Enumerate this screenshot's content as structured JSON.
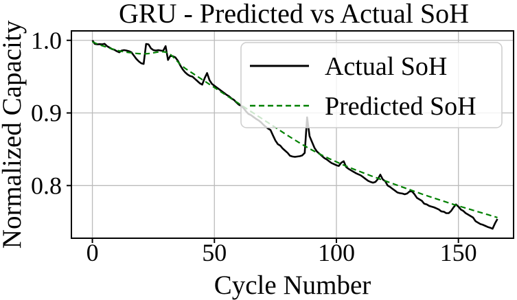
{
  "chart_data": {
    "type": "line",
    "title": "GRU - Predicted vs Actual SoH",
    "xlabel": "Cycle Number",
    "ylabel": "Normalized Capacity",
    "xlim": [
      -8.6,
      172.6
    ],
    "ylim": [
      0.7275,
      1.013
    ],
    "xticks": [
      0,
      50,
      100,
      150
    ],
    "yticks": [
      0.8,
      0.9,
      1.0
    ],
    "xtick_labels": [
      "0",
      "50",
      "100",
      "150"
    ],
    "ytick_labels": [
      "0.8",
      "0.9",
      "1.0"
    ],
    "grid": true,
    "grid_color": "#bbbbbb",
    "spine_color": "#000000",
    "background_color": "#ffffff",
    "legend": {
      "position": "upper right",
      "background": "rgba(255,255,255,0.8)",
      "border_color": "#cccccc"
    },
    "x": [
      0,
      1,
      2,
      3,
      4,
      5,
      6,
      7,
      8,
      9,
      10,
      11,
      12,
      13,
      14,
      15,
      16,
      17,
      18,
      19,
      20,
      21,
      22,
      23,
      24,
      25,
      26,
      27,
      28,
      29,
      30,
      31,
      32,
      33,
      34,
      35,
      36,
      37,
      38,
      39,
      40,
      41,
      42,
      43,
      44,
      45,
      46,
      47,
      48,
      49,
      50,
      51,
      52,
      53,
      54,
      55,
      56,
      57,
      58,
      59,
      60,
      61,
      62,
      63,
      64,
      65,
      66,
      67,
      68,
      69,
      70,
      71,
      72,
      73,
      74,
      75,
      76,
      77,
      78,
      79,
      80,
      81,
      82,
      83,
      84,
      85,
      86,
      87,
      88,
      89,
      90,
      91,
      92,
      93,
      94,
      95,
      96,
      97,
      98,
      99,
      100,
      101,
      102,
      103,
      104,
      105,
      106,
      107,
      108,
      109,
      110,
      111,
      112,
      113,
      114,
      115,
      116,
      117,
      118,
      119,
      120,
      121,
      122,
      123,
      124,
      125,
      126,
      127,
      128,
      129,
      130,
      131,
      132,
      133,
      134,
      135,
      136,
      137,
      138,
      139,
      140,
      141,
      142,
      143,
      144,
      145,
      146,
      147,
      148,
      149,
      150,
      151,
      152,
      153,
      154,
      155,
      156,
      157,
      158,
      159,
      160,
      161,
      162,
      163,
      164,
      165,
      166
    ],
    "series": [
      {
        "name": "Actual SoH",
        "color": "#000000",
        "style": "solid",
        "line_width": 2.6,
        "values": [
          1.0,
          0.995,
          0.9945,
          0.9948,
          0.9945,
          0.9952,
          0.992,
          0.99,
          0.988,
          0.987,
          0.985,
          0.9835,
          0.986,
          0.9865,
          0.986,
          0.985,
          0.9835,
          0.979,
          0.9745,
          0.971,
          0.9685,
          0.9675,
          0.995,
          0.9945,
          0.989,
          0.9865,
          0.986,
          0.9865,
          0.986,
          0.9855,
          0.992,
          0.973,
          0.979,
          0.978,
          0.9765,
          0.972,
          0.9655,
          0.96,
          0.956,
          0.953,
          0.951,
          0.95,
          0.947,
          0.944,
          0.941,
          0.939,
          0.948,
          0.955,
          0.945,
          0.94,
          0.9375,
          0.935,
          0.9325,
          0.93,
          0.9275,
          0.925,
          0.923,
          0.92,
          0.918,
          0.9145,
          0.9115,
          0.91,
          0.9065,
          0.902,
          0.8985,
          0.897,
          0.8945,
          0.892,
          0.89,
          0.8875,
          0.884,
          0.881,
          0.8785,
          0.8765,
          0.869,
          0.862,
          0.857,
          0.855,
          0.851,
          0.848,
          0.845,
          0.841,
          0.84,
          0.8395,
          0.84,
          0.8405,
          0.8415,
          0.845,
          0.894,
          0.868,
          0.86,
          0.852,
          0.847,
          0.844,
          0.841,
          0.838,
          0.836,
          0.8335,
          0.831,
          0.8295,
          0.828,
          0.827,
          0.8315,
          0.8335,
          0.8255,
          0.823,
          0.821,
          0.819,
          0.817,
          0.8155,
          0.814,
          0.8115,
          0.809,
          0.8065,
          0.805,
          0.804,
          0.805,
          0.809,
          0.815,
          0.8085,
          0.806,
          0.8,
          0.798,
          0.7955,
          0.793,
          0.7905,
          0.7895,
          0.789,
          0.788,
          0.789,
          0.792,
          0.792,
          0.788,
          0.783,
          0.781,
          0.779,
          0.775,
          0.774,
          0.772,
          0.771,
          0.77,
          0.7685,
          0.767,
          0.7645,
          0.764,
          0.762,
          0.762,
          0.765,
          0.77,
          0.774,
          0.771,
          0.767,
          0.765,
          0.762,
          0.76,
          0.758,
          0.756,
          0.751,
          0.749,
          0.747,
          0.746,
          0.7445,
          0.743,
          0.742,
          0.7405,
          0.748,
          0.754
        ]
      },
      {
        "name": "Predicted SoH",
        "color": "#008000",
        "style": "dashed",
        "dash": [
          8,
          5
        ],
        "line_width": 2.2,
        "values": [
          0.998,
          0.9965,
          0.995,
          0.9938,
          0.9926,
          0.9915,
          0.9905,
          0.9893,
          0.9882,
          0.9872,
          0.9863,
          0.9855,
          0.9848,
          0.9842,
          0.9837,
          0.9832,
          0.9828,
          0.9824,
          0.982,
          0.9817,
          0.9815,
          0.9814,
          0.9815,
          0.9818,
          0.9822,
          0.9828,
          0.9834,
          0.984,
          0.9843,
          0.9843,
          0.9838,
          0.9825,
          0.9805,
          0.9775,
          0.974,
          0.9705,
          0.967,
          0.964,
          0.9615,
          0.9592,
          0.957,
          0.9548,
          0.9526,
          0.9504,
          0.9482,
          0.946,
          0.9438,
          0.9416,
          0.9394,
          0.9372,
          0.935,
          0.9328,
          0.9306,
          0.9284,
          0.9262,
          0.924,
          0.9218,
          0.9196,
          0.9174,
          0.9152,
          0.913,
          0.9108,
          0.9086,
          0.9064,
          0.9042,
          0.902,
          0.8998,
          0.8976,
          0.8954,
          0.8932,
          0.891,
          0.8888,
          0.8866,
          0.8844,
          0.8822,
          0.88,
          0.8778,
          0.8756,
          0.8734,
          0.8712,
          0.869,
          0.8669,
          0.8648,
          0.8627,
          0.8606,
          0.8586,
          0.8566,
          0.8546,
          0.8527,
          0.8508,
          0.849,
          0.8472,
          0.8454,
          0.8437,
          0.842,
          0.8404,
          0.8388,
          0.8372,
          0.8356,
          0.8341,
          0.8326,
          0.8311,
          0.8296,
          0.8282,
          0.8268,
          0.8254,
          0.824,
          0.8227,
          0.8214,
          0.8201,
          0.8188,
          0.8175,
          0.8162,
          0.8149,
          0.8136,
          0.8124,
          0.8112,
          0.81,
          0.8088,
          0.8076,
          0.8064,
          0.8052,
          0.804,
          0.8028,
          0.8016,
          0.8004,
          0.7992,
          0.798,
          0.7968,
          0.7956,
          0.7944,
          0.7932,
          0.792,
          0.7908,
          0.7896,
          0.7884,
          0.7872,
          0.7861,
          0.785,
          0.7839,
          0.7828,
          0.7817,
          0.7806,
          0.7795,
          0.7784,
          0.7773,
          0.7762,
          0.7751,
          0.774,
          0.773,
          0.772,
          0.771,
          0.77,
          0.769,
          0.768,
          0.767,
          0.766,
          0.765,
          0.764,
          0.763,
          0.762,
          0.761,
          0.76,
          0.759,
          0.758,
          0.757,
          0.756
        ]
      }
    ]
  }
}
